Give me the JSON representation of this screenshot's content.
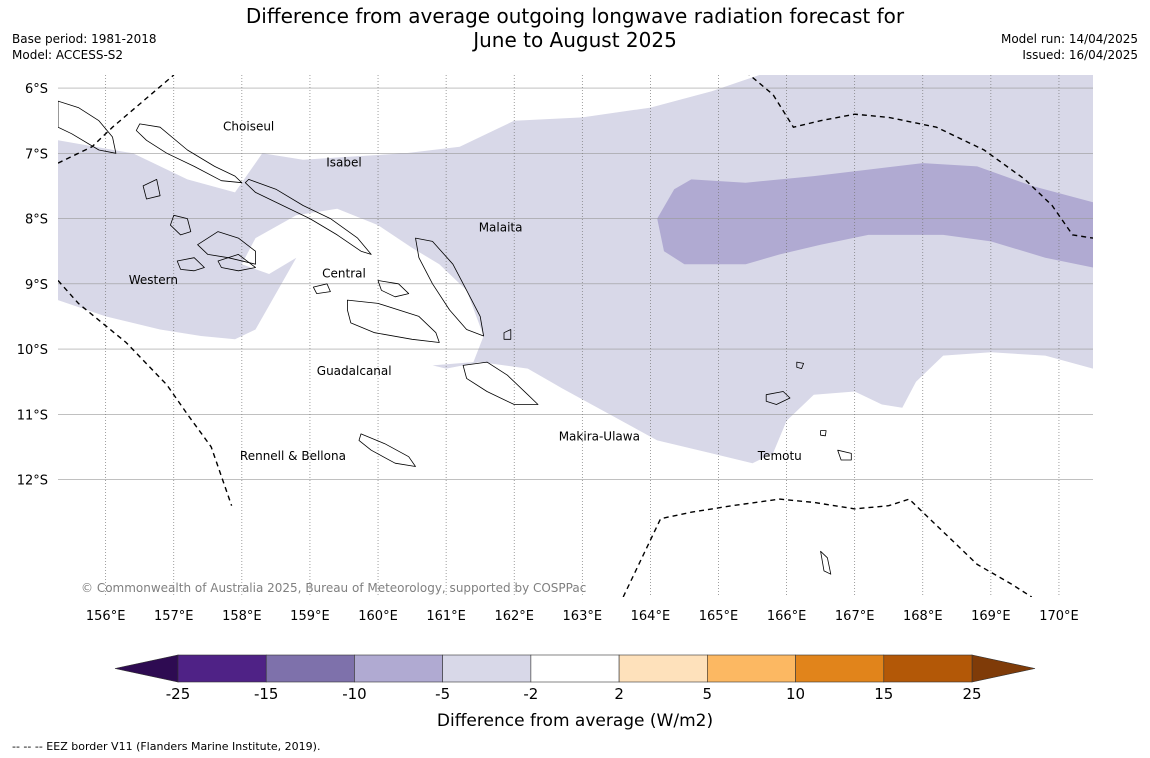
{
  "title": {
    "line1": "Difference from average outgoing longwave radiation forecast for",
    "line2": "June to August 2025"
  },
  "meta_left": {
    "base_period": "Base period: 1981-2018",
    "model": "Model: ACCESS-S2"
  },
  "meta_right": {
    "model_run": "Model run: 14/04/2025",
    "issued": "Issued: 16/04/2025"
  },
  "map": {
    "lon_range": [
      155.3,
      170.5
    ],
    "lat_range": [
      -13.8,
      -5.8
    ],
    "lat_ticks": [
      {
        "value": -6,
        "label": "6°S"
      },
      {
        "value": -7,
        "label": "7°S"
      },
      {
        "value": -8,
        "label": "8°S"
      },
      {
        "value": -9,
        "label": "9°S"
      },
      {
        "value": -10,
        "label": "10°S"
      },
      {
        "value": -11,
        "label": "11°S"
      },
      {
        "value": -12,
        "label": "12°S"
      }
    ],
    "lon_ticks": [
      {
        "value": 156,
        "label": "156°E"
      },
      {
        "value": 157,
        "label": "157°E"
      },
      {
        "value": 158,
        "label": "158°E"
      },
      {
        "value": 159,
        "label": "159°E"
      },
      {
        "value": 160,
        "label": "160°E"
      },
      {
        "value": 161,
        "label": "161°E"
      },
      {
        "value": 162,
        "label": "162°E"
      },
      {
        "value": 163,
        "label": "163°E"
      },
      {
        "value": 164,
        "label": "164°E"
      },
      {
        "value": 165,
        "label": "165°E"
      },
      {
        "value": 166,
        "label": "166°E"
      },
      {
        "value": 167,
        "label": "167°E"
      },
      {
        "value": 168,
        "label": "168°E"
      },
      {
        "value": 169,
        "label": "169°E"
      },
      {
        "value": 170,
        "label": "170°E"
      }
    ],
    "province_labels": [
      {
        "name": "Choiseul",
        "lon": 158.1,
        "lat": -6.65
      },
      {
        "name": "Isabel",
        "lon": 159.5,
        "lat": -7.2
      },
      {
        "name": "Malaita",
        "lon": 161.8,
        "lat": -8.2
      },
      {
        "name": "Western",
        "lon": 156.7,
        "lat": -9.0
      },
      {
        "name": "Central",
        "lon": 159.5,
        "lat": -8.9
      },
      {
        "name": "Guadalcanal",
        "lon": 159.65,
        "lat": -10.4
      },
      {
        "name": "Makira-Ulawa",
        "lon": 163.25,
        "lat": -11.4
      },
      {
        "name": "Temotu",
        "lon": 165.9,
        "lat": -11.7
      },
      {
        "name": "Rennell & Bellona",
        "lon": 158.75,
        "lat": -11.7
      }
    ],
    "anomaly_regions": [
      {
        "category": "-5 to -2",
        "color": "#d8d8e8",
        "polygon": [
          [
            155.3,
            -6.8
          ],
          [
            156.4,
            -7.0
          ],
          [
            157.2,
            -7.4
          ],
          [
            157.9,
            -7.6
          ],
          [
            158.3,
            -7.0
          ],
          [
            158.9,
            -7.1
          ],
          [
            159.6,
            -7.05
          ],
          [
            160.4,
            -7.0
          ],
          [
            161.2,
            -6.9
          ],
          [
            162.0,
            -6.5
          ],
          [
            163.0,
            -6.45
          ],
          [
            164.0,
            -6.3
          ],
          [
            164.9,
            -6.05
          ],
          [
            165.6,
            -5.8
          ],
          [
            170.5,
            -5.8
          ],
          [
            170.5,
            -10.3
          ],
          [
            169.8,
            -10.1
          ],
          [
            169.0,
            -10.05
          ],
          [
            168.3,
            -10.1
          ],
          [
            167.9,
            -10.5
          ],
          [
            167.7,
            -10.9
          ],
          [
            167.4,
            -10.85
          ],
          [
            167.0,
            -10.65
          ],
          [
            166.4,
            -10.7
          ],
          [
            166.0,
            -11.1
          ],
          [
            165.8,
            -11.6
          ],
          [
            165.5,
            -11.75
          ],
          [
            164.9,
            -11.6
          ],
          [
            164.1,
            -11.4
          ],
          [
            163.4,
            -11.0
          ],
          [
            162.7,
            -10.6
          ],
          [
            162.2,
            -10.3
          ],
          [
            161.5,
            -10.2
          ],
          [
            161.0,
            -10.3
          ],
          [
            160.8,
            -10.25
          ],
          [
            161.4,
            -10.2
          ],
          [
            161.55,
            -9.8
          ],
          [
            161.3,
            -9.1
          ],
          [
            160.9,
            -8.7
          ],
          [
            160.5,
            -8.45
          ],
          [
            160.0,
            -8.1
          ],
          [
            159.4,
            -7.85
          ],
          [
            158.8,
            -7.95
          ],
          [
            158.2,
            -8.3
          ],
          [
            158.0,
            -8.7
          ],
          [
            158.4,
            -8.85
          ],
          [
            158.8,
            -8.6
          ],
          [
            158.2,
            -9.7
          ],
          [
            157.9,
            -9.85
          ],
          [
            157.4,
            -9.8
          ],
          [
            156.8,
            -9.7
          ],
          [
            156.0,
            -9.5
          ],
          [
            155.3,
            -9.25
          ]
        ]
      },
      {
        "category": "-10 to -5",
        "color": "#b0aad2",
        "polygon": [
          [
            164.35,
            -7.55
          ],
          [
            164.6,
            -7.4
          ],
          [
            165.4,
            -7.45
          ],
          [
            166.4,
            -7.35
          ],
          [
            167.2,
            -7.25
          ],
          [
            168.0,
            -7.15
          ],
          [
            168.8,
            -7.2
          ],
          [
            169.6,
            -7.5
          ],
          [
            170.5,
            -7.75
          ],
          [
            170.5,
            -8.75
          ],
          [
            169.8,
            -8.6
          ],
          [
            169.0,
            -8.35
          ],
          [
            168.3,
            -8.25
          ],
          [
            167.2,
            -8.25
          ],
          [
            166.5,
            -8.4
          ],
          [
            165.9,
            -8.55
          ],
          [
            165.4,
            -8.7
          ],
          [
            164.5,
            -8.7
          ],
          [
            164.2,
            -8.5
          ],
          [
            164.1,
            -8.0
          ]
        ]
      }
    ],
    "islands": [
      [
        [
          156.5,
          -6.55
        ],
        [
          156.8,
          -6.6
        ],
        [
          157.2,
          -6.95
        ],
        [
          157.6,
          -7.2
        ],
        [
          157.9,
          -7.35
        ],
        [
          158.0,
          -7.45
        ],
        [
          157.7,
          -7.42
        ],
        [
          157.3,
          -7.2
        ],
        [
          156.9,
          -7.0
        ],
        [
          156.6,
          -6.8
        ],
        [
          156.45,
          -6.65
        ]
      ],
      [
        [
          158.1,
          -7.4
        ],
        [
          158.5,
          -7.55
        ],
        [
          158.9,
          -7.8
        ],
        [
          159.3,
          -8.0
        ],
        [
          159.7,
          -8.3
        ],
        [
          159.9,
          -8.55
        ],
        [
          159.75,
          -8.5
        ],
        [
          159.4,
          -8.25
        ],
        [
          159.0,
          -8.0
        ],
        [
          158.6,
          -7.8
        ],
        [
          158.2,
          -7.6
        ],
        [
          158.05,
          -7.45
        ]
      ],
      [
        [
          155.3,
          -6.2
        ],
        [
          155.6,
          -6.3
        ],
        [
          155.9,
          -6.5
        ],
        [
          156.1,
          -6.75
        ],
        [
          156.15,
          -7.0
        ],
        [
          155.9,
          -6.95
        ],
        [
          155.5,
          -6.7
        ],
        [
          155.3,
          -6.6
        ]
      ],
      [
        [
          157.0,
          -7.95
        ],
        [
          157.2,
          -8.0
        ],
        [
          157.25,
          -8.2
        ],
        [
          157.1,
          -8.25
        ],
        [
          156.95,
          -8.1
        ]
      ],
      [
        [
          157.35,
          -8.4
        ],
        [
          157.65,
          -8.2
        ],
        [
          157.95,
          -8.3
        ],
        [
          158.2,
          -8.5
        ],
        [
          158.2,
          -8.7
        ],
        [
          157.8,
          -8.6
        ],
        [
          157.5,
          -8.55
        ]
      ],
      [
        [
          157.05,
          -8.65
        ],
        [
          157.3,
          -8.6
        ],
        [
          157.45,
          -8.75
        ],
        [
          157.3,
          -8.8
        ],
        [
          157.1,
          -8.78
        ]
      ],
      [
        [
          157.65,
          -8.65
        ],
        [
          157.95,
          -8.55
        ],
        [
          158.2,
          -8.75
        ],
        [
          157.95,
          -8.8
        ],
        [
          157.7,
          -8.75
        ]
      ],
      [
        [
          156.55,
          -7.5
        ],
        [
          156.75,
          -7.4
        ],
        [
          156.8,
          -7.65
        ],
        [
          156.6,
          -7.7
        ]
      ],
      [
        [
          159.05,
          -9.05
        ],
        [
          159.25,
          -9.0
        ],
        [
          159.3,
          -9.12
        ],
        [
          159.1,
          -9.15
        ]
      ],
      [
        [
          160.0,
          -8.95
        ],
        [
          160.3,
          -9.0
        ],
        [
          160.45,
          -9.15
        ],
        [
          160.25,
          -9.2
        ],
        [
          160.05,
          -9.1
        ]
      ],
      [
        [
          159.55,
          -9.25
        ],
        [
          160.0,
          -9.3
        ],
        [
          160.6,
          -9.5
        ],
        [
          160.85,
          -9.75
        ],
        [
          160.9,
          -9.9
        ],
        [
          160.5,
          -9.85
        ],
        [
          159.95,
          -9.75
        ],
        [
          159.6,
          -9.6
        ],
        [
          159.55,
          -9.4
        ]
      ],
      [
        [
          160.55,
          -8.3
        ],
        [
          160.8,
          -8.35
        ],
        [
          161.1,
          -8.7
        ],
        [
          161.3,
          -9.1
        ],
        [
          161.5,
          -9.5
        ],
        [
          161.55,
          -9.8
        ],
        [
          161.3,
          -9.7
        ],
        [
          161.05,
          -9.4
        ],
        [
          160.8,
          -9.0
        ],
        [
          160.6,
          -8.6
        ]
      ],
      [
        [
          161.25,
          -10.25
        ],
        [
          161.6,
          -10.2
        ],
        [
          161.9,
          -10.4
        ],
        [
          162.2,
          -10.7
        ],
        [
          162.35,
          -10.85
        ],
        [
          162.0,
          -10.85
        ],
        [
          161.6,
          -10.65
        ],
        [
          161.3,
          -10.45
        ]
      ],
      [
        [
          159.75,
          -11.3
        ],
        [
          160.1,
          -11.45
        ],
        [
          160.45,
          -11.65
        ],
        [
          160.55,
          -11.8
        ],
        [
          160.25,
          -11.75
        ],
        [
          159.9,
          -11.55
        ],
        [
          159.72,
          -11.4
        ]
      ],
      [
        [
          165.7,
          -10.7
        ],
        [
          165.95,
          -10.65
        ],
        [
          166.05,
          -10.75
        ],
        [
          165.85,
          -10.85
        ],
        [
          165.7,
          -10.8
        ]
      ],
      [
        [
          166.75,
          -11.55
        ],
        [
          166.95,
          -11.6
        ],
        [
          166.95,
          -11.7
        ],
        [
          166.8,
          -11.7
        ]
      ],
      [
        [
          161.85,
          -9.75
        ],
        [
          161.95,
          -9.7
        ],
        [
          161.95,
          -9.85
        ],
        [
          161.85,
          -9.85
        ]
      ],
      [
        [
          166.5,
          -11.25
        ],
        [
          166.58,
          -11.25
        ],
        [
          166.57,
          -11.33
        ],
        [
          166.5,
          -11.32
        ]
      ],
      [
        [
          166.15,
          -10.2
        ],
        [
          166.25,
          -10.22
        ],
        [
          166.22,
          -10.3
        ],
        [
          166.15,
          -10.28
        ]
      ],
      [
        [
          166.5,
          -13.1
        ],
        [
          166.6,
          -13.2
        ],
        [
          166.65,
          -13.45
        ],
        [
          166.55,
          -13.4
        ]
      ]
    ],
    "eez_lines": [
      [
        [
          155.3,
          -7.15
        ],
        [
          155.8,
          -6.9
        ],
        [
          156.1,
          -6.6
        ],
        [
          157.0,
          -5.8
        ]
      ],
      [
        [
          155.3,
          -8.95
        ],
        [
          155.6,
          -9.3
        ],
        [
          156.3,
          -9.9
        ],
        [
          156.9,
          -10.55
        ],
        [
          157.2,
          -11.0
        ],
        [
          157.55,
          -11.5
        ],
        [
          157.85,
          -12.4
        ]
      ],
      [
        [
          165.4,
          -5.75
        ],
        [
          165.8,
          -6.1
        ],
        [
          166.1,
          -6.6
        ],
        [
          166.5,
          -6.5
        ],
        [
          167.0,
          -6.4
        ],
        [
          167.5,
          -6.45
        ],
        [
          168.2,
          -6.6
        ],
        [
          168.9,
          -6.95
        ],
        [
          169.5,
          -7.4
        ],
        [
          169.9,
          -7.8
        ],
        [
          170.2,
          -8.25
        ],
        [
          170.5,
          -8.3
        ]
      ],
      [
        [
          163.6,
          -13.8
        ],
        [
          164.15,
          -12.6
        ],
        [
          164.6,
          -12.5
        ],
        [
          165.2,
          -12.4
        ],
        [
          165.9,
          -12.3
        ],
        [
          166.4,
          -12.35
        ],
        [
          167.0,
          -12.45
        ],
        [
          167.5,
          -12.4
        ],
        [
          167.8,
          -12.3
        ],
        [
          168.3,
          -12.8
        ],
        [
          168.8,
          -13.3
        ],
        [
          169.3,
          -13.6
        ],
        [
          169.6,
          -13.8
        ]
      ]
    ],
    "copyright": "© Commonwealth of Australia 2025, Bureau of Meteorology, supported by COSPPac"
  },
  "legend": {
    "label": "Difference from average (W/m2)",
    "ticks": [
      "-25",
      "-15",
      "-10",
      "-5",
      "-2",
      "2",
      "5",
      "10",
      "15",
      "25"
    ],
    "colors": [
      "#4f2286",
      "#7e71ab",
      "#b0aad2",
      "#d8d8e8",
      "#ffffff",
      "#fee1bb",
      "#fcb862",
      "#e1841b",
      "#b35807"
    ],
    "extend_low_color": "#2e0b52",
    "extend_high_color": "#7f3b08"
  },
  "footnote": "--  --  -- EEZ border V11 (Flanders Marine Institute, 2019)."
}
